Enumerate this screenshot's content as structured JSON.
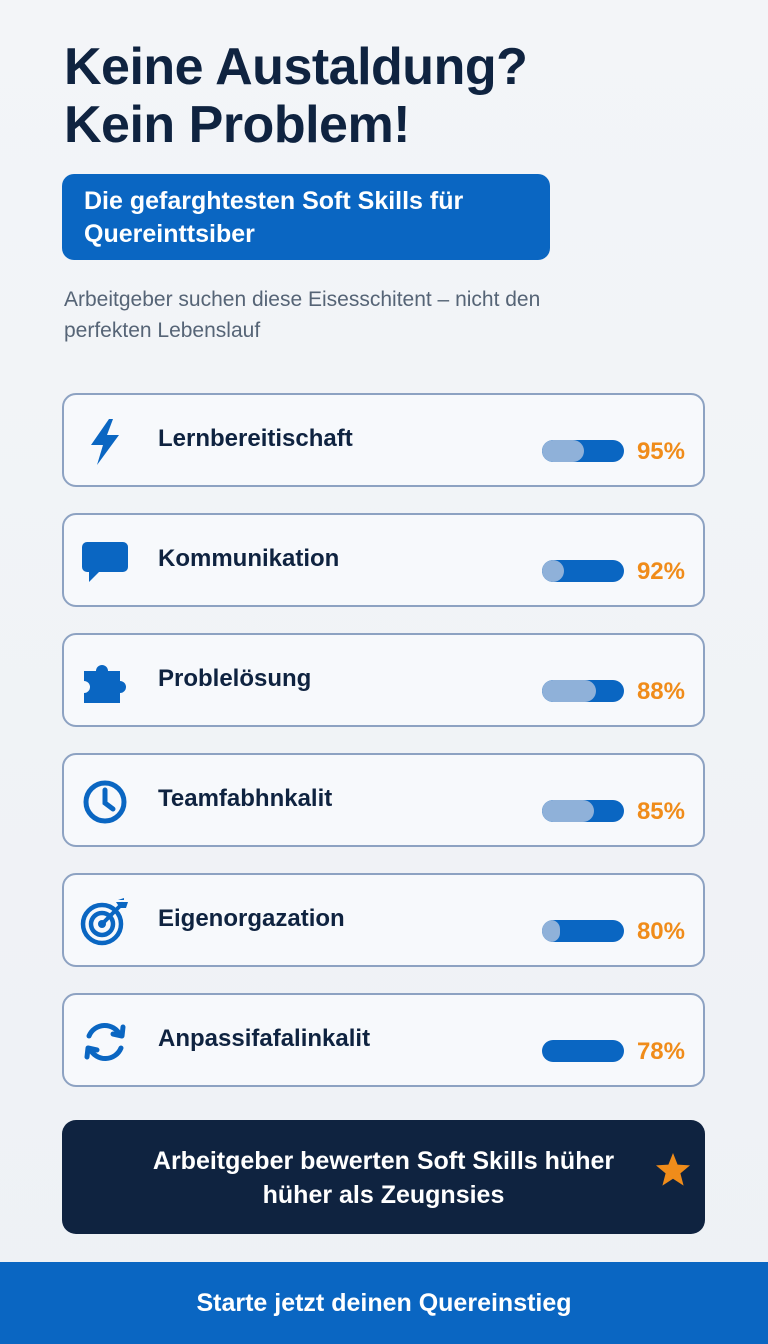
{
  "header": {
    "title_line1": "Keine Austaldung?",
    "title_line2": "Kein Problem!",
    "tag_line1": "Die gefarghtesten Soft Skills für",
    "tag_line2": "Quereinttsiber",
    "intro_line1": "Arbeitgeber suchen diese Eisesschitent – nicht den",
    "intro_line2": "perfekten Lebenslauf"
  },
  "skills": [
    {
      "name": "Lernbereitischaft",
      "value_label": "95%",
      "value": 95,
      "icon": "lightning-icon"
    },
    {
      "name": "Kommunikation",
      "value_label": "92%",
      "value": 92,
      "icon": "chat-bubble-icon"
    },
    {
      "name": "Problelösung",
      "value_label": "88%",
      "value": 88,
      "icon": "puzzle-icon"
    },
    {
      "name": "Teamfabhnkalit",
      "value_label": "85%",
      "value": 85,
      "icon": "clock-icon"
    },
    {
      "name": "Eigenorgazation",
      "value_label": "80%",
      "value": 80,
      "icon": "target-icon"
    },
    {
      "name": "Anpassifafalinkalit",
      "value_label": "78%",
      "value": 78,
      "icon": "refresh-icon"
    }
  ],
  "banner": {
    "line1": "Arbeitgeber bewerten Soft Skills hüher",
    "line2": "hüher als Zeugnsies",
    "icon": "star-icon"
  },
  "cta": {
    "label": "Starte jetzt deinen Quereinstieg"
  },
  "colors": {
    "primary": "#0a66c2",
    "navy": "#0f2340",
    "accent": "#f08c1a",
    "bar_light": "#8fb1d9",
    "card_border": "#8da2c2"
  }
}
